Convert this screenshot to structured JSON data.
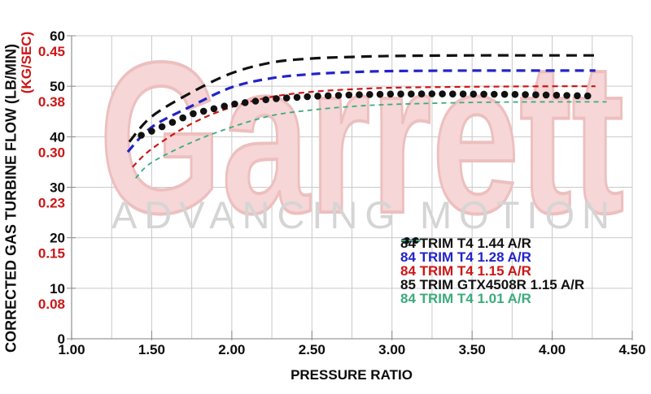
{
  "watermark": {
    "brand": "Garrett",
    "tagline": "ADVANCING MOTION",
    "brand_fill": "#f6d6d6",
    "brand_edge": "#edbfbf",
    "tagline_color": "#d5d5d5"
  },
  "chart_data": {
    "type": "line",
    "title": "",
    "xlabel": "PRESSURE RATIO",
    "ylabel_primary": "CORRECTED GAS TURBINE FLOW (LB/MIN)",
    "ylabel_secondary": "(KG/SEC)",
    "xlim": [
      1.0,
      4.5
    ],
    "ylim": [
      0,
      60
    ],
    "grid": true,
    "x_minor_step": 0.25,
    "y_major_step": 10,
    "grid_color": "#c9c9c9",
    "axis_color": "#9a9a9a",
    "tick_color": "#8a8a8a",
    "tick_label_color_primary": "#0c0c0c",
    "tick_label_color_secondary": "#cc1616",
    "legend_position": "inside-lower-right",
    "x_ticks": [
      {
        "value": 1.0,
        "label": "1.00"
      },
      {
        "value": 1.5,
        "label": "1.50"
      },
      {
        "value": 2.0,
        "label": "2.00"
      },
      {
        "value": 2.5,
        "label": "2.50"
      },
      {
        "value": 3.0,
        "label": "3.00"
      },
      {
        "value": 3.5,
        "label": "3.50"
      },
      {
        "value": 4.0,
        "label": "4.00"
      },
      {
        "value": 4.5,
        "label": "4.50"
      }
    ],
    "y_ticks": [
      {
        "value": 0,
        "lb_min": "0",
        "kg_sec": ""
      },
      {
        "value": 10,
        "lb_min": "10",
        "kg_sec": "0.08"
      },
      {
        "value": 20,
        "lb_min": "20",
        "kg_sec": "0.15"
      },
      {
        "value": 30,
        "lb_min": "30",
        "kg_sec": "0.23"
      },
      {
        "value": 40,
        "lb_min": "40",
        "kg_sec": "0.30"
      },
      {
        "value": 50,
        "lb_min": "50",
        "kg_sec": "0.38"
      },
      {
        "value": 60,
        "lb_min": "60",
        "kg_sec": "0.45"
      }
    ],
    "series": [
      {
        "name": "84 TRIM T4 1.44 A/R",
        "color": "#111111",
        "style": "dashed",
        "stroke_width": 3.2,
        "dash": "13 8",
        "points": [
          [
            1.36,
            39.0
          ],
          [
            1.5,
            44.0
          ],
          [
            1.75,
            48.8
          ],
          [
            2.0,
            52.6
          ],
          [
            2.25,
            54.7
          ],
          [
            2.5,
            55.5
          ],
          [
            2.75,
            55.8
          ],
          [
            3.0,
            56.0
          ],
          [
            3.5,
            56.1
          ],
          [
            4.0,
            56.1
          ],
          [
            4.27,
            56.1
          ]
        ]
      },
      {
        "name": "84 TRIM T4 1.28 A/R",
        "color": "#2323c8",
        "style": "dashed",
        "stroke_width": 3.2,
        "dash": "11 7",
        "points": [
          [
            1.35,
            37.0
          ],
          [
            1.5,
            41.9
          ],
          [
            1.75,
            46.1
          ],
          [
            2.0,
            49.8
          ],
          [
            2.25,
            51.6
          ],
          [
            2.5,
            52.4
          ],
          [
            2.75,
            52.8
          ],
          [
            3.0,
            53.0
          ],
          [
            3.5,
            53.1
          ],
          [
            4.0,
            53.1
          ],
          [
            4.27,
            53.1
          ]
        ]
      },
      {
        "name": "84 TRIM T4 1.15 A/R",
        "color": "#cc1616",
        "style": "dashed",
        "stroke_width": 2.2,
        "dash": "7 5",
        "points": [
          [
            1.38,
            34.0
          ],
          [
            1.5,
            37.6
          ],
          [
            1.75,
            42.6
          ],
          [
            2.0,
            45.9
          ],
          [
            2.25,
            47.9
          ],
          [
            2.5,
            48.9
          ],
          [
            2.75,
            49.4
          ],
          [
            3.0,
            49.7
          ],
          [
            3.5,
            49.9
          ],
          [
            4.0,
            50.0
          ],
          [
            4.27,
            50.0
          ]
        ]
      },
      {
        "name": "85 TRIM GTX4508R 1.15 A/R",
        "color": "#111111",
        "style": "dots",
        "dot_radius": 4.3,
        "dot_step": 0.0648,
        "points": [
          [
            1.435,
            40.3
          ],
          [
            1.5,
            41.1
          ],
          [
            1.75,
            44.5
          ],
          [
            2.0,
            46.4
          ],
          [
            2.25,
            47.5
          ],
          [
            2.5,
            48.0
          ],
          [
            2.75,
            48.3
          ],
          [
            3.0,
            48.45
          ],
          [
            3.25,
            48.5
          ],
          [
            3.5,
            48.45
          ],
          [
            3.75,
            48.4
          ],
          [
            4.0,
            48.25
          ],
          [
            4.25,
            48.05
          ]
        ]
      },
      {
        "name": "84 TRIM T4 1.01 A/R",
        "color": "#3cab7c",
        "style": "dashed",
        "stroke_width": 1.8,
        "dash": "6 5",
        "points": [
          [
            1.4,
            31.8
          ],
          [
            1.5,
            34.9
          ],
          [
            1.75,
            38.9
          ],
          [
            2.0,
            41.9
          ],
          [
            2.25,
            44.2
          ],
          [
            2.5,
            45.3
          ],
          [
            2.75,
            46.0
          ],
          [
            3.0,
            46.4
          ],
          [
            3.5,
            46.8
          ],
          [
            4.0,
            46.9
          ],
          [
            4.34,
            46.9
          ]
        ]
      }
    ]
  }
}
